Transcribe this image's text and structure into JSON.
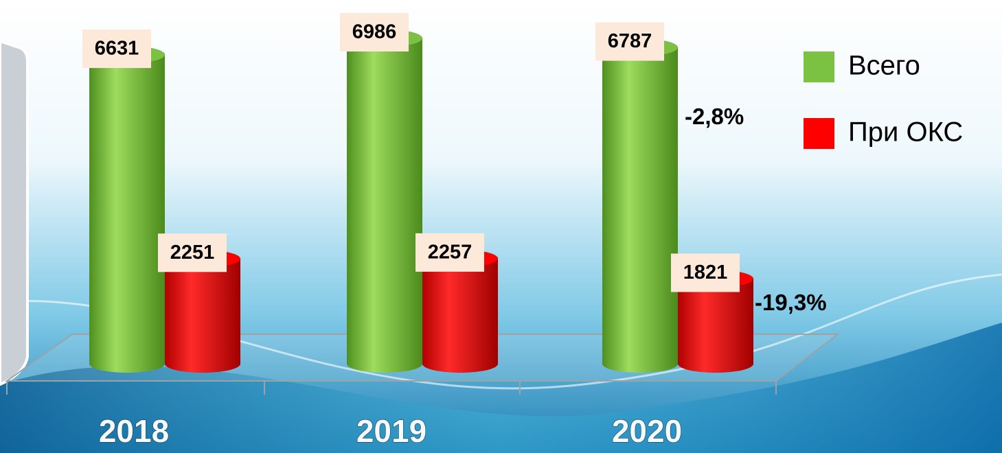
{
  "chart_data": {
    "type": "bar",
    "categories": [
      "2018",
      "2019",
      "2020"
    ],
    "series": [
      {
        "name": "Всего",
        "color": "#7cc242",
        "values": [
          6631,
          6986,
          6787
        ]
      },
      {
        "name": "При ОКС",
        "color": "#ff0000",
        "values": [
          2251,
          2257,
          1821
        ]
      }
    ],
    "annotations": [
      "-2,8%",
      "-19,3%"
    ]
  }
}
